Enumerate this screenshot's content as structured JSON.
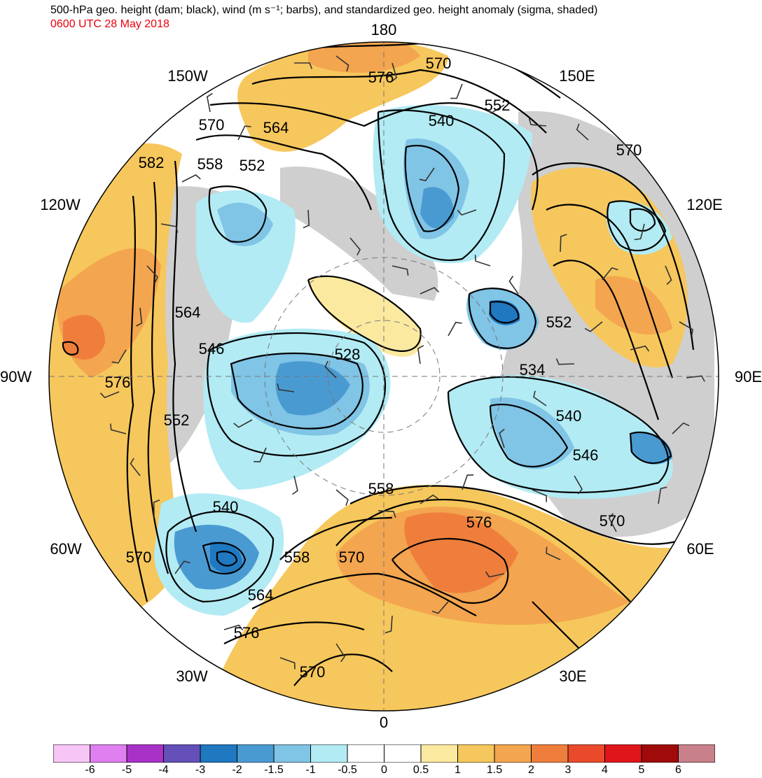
{
  "header": {
    "title": "500-hPa geo. height (dam; black), wind (m s⁻¹; barbs), and standardized geo. height anomaly (sigma, shaded)",
    "subtitle": "0600 UTC 28 May 2018"
  },
  "map": {
    "projection": "north-polar-stereographic",
    "longitude_labels": {
      "top": "180",
      "bottom": "0",
      "left": "90W",
      "right": "90E",
      "upper_left_1": "150W",
      "upper_left_2": "120W",
      "lower_left_1": "60W",
      "lower_left_2": "30W",
      "upper_right_1": "150E",
      "upper_right_2": "120E",
      "lower_right_1": "60E",
      "lower_right_2": "30E"
    },
    "contour_labels": [
      {
        "id": "c1",
        "text": "570"
      },
      {
        "id": "c2",
        "text": "576"
      },
      {
        "id": "c3",
        "text": "552"
      },
      {
        "id": "c4",
        "text": "540"
      },
      {
        "id": "c5",
        "text": "570"
      },
      {
        "id": "c6",
        "text": "564"
      },
      {
        "id": "c7",
        "text": "552"
      },
      {
        "id": "c8",
        "text": "558"
      },
      {
        "id": "c9",
        "text": "582"
      },
      {
        "id": "c10",
        "text": "570"
      },
      {
        "id": "c11",
        "text": "564"
      },
      {
        "id": "c12",
        "text": "546"
      },
      {
        "id": "c13",
        "text": "528"
      },
      {
        "id": "c14",
        "text": "576"
      },
      {
        "id": "c15",
        "text": "552"
      },
      {
        "id": "c16",
        "text": "552"
      },
      {
        "id": "c17",
        "text": "534"
      },
      {
        "id": "c18",
        "text": "540"
      },
      {
        "id": "c19",
        "text": "546"
      },
      {
        "id": "c20",
        "text": "540"
      },
      {
        "id": "c21",
        "text": "558"
      },
      {
        "id": "c22",
        "text": "576"
      },
      {
        "id": "c23",
        "text": "570"
      },
      {
        "id": "c24",
        "text": "570"
      },
      {
        "id": "c25",
        "text": "558"
      },
      {
        "id": "c26",
        "text": "570"
      },
      {
        "id": "c27",
        "text": "564"
      },
      {
        "id": "c28",
        "text": "576"
      },
      {
        "id": "c29",
        "text": "570"
      }
    ]
  },
  "colorbar": {
    "colors": [
      "#f7c6f7",
      "#e07ff0",
      "#a832c8",
      "#6450b8",
      "#1f78c0",
      "#4a9ad2",
      "#80c4e6",
      "#b2ebf4",
      "#ffffff",
      "#ffffff",
      "#fbe9a0",
      "#f6c75c",
      "#f3a54f",
      "#ef7e3c",
      "#ea4a2c",
      "#e0151b",
      "#a00a0a",
      "#c8808b"
    ],
    "tick_labels": [
      "-6",
      "-5",
      "-4",
      "-3",
      "-2",
      "-1.5",
      "-1",
      "-0.5",
      "0",
      "0.5",
      "1",
      "1.5",
      "2",
      "3",
      "4",
      "5",
      "6"
    ]
  }
}
